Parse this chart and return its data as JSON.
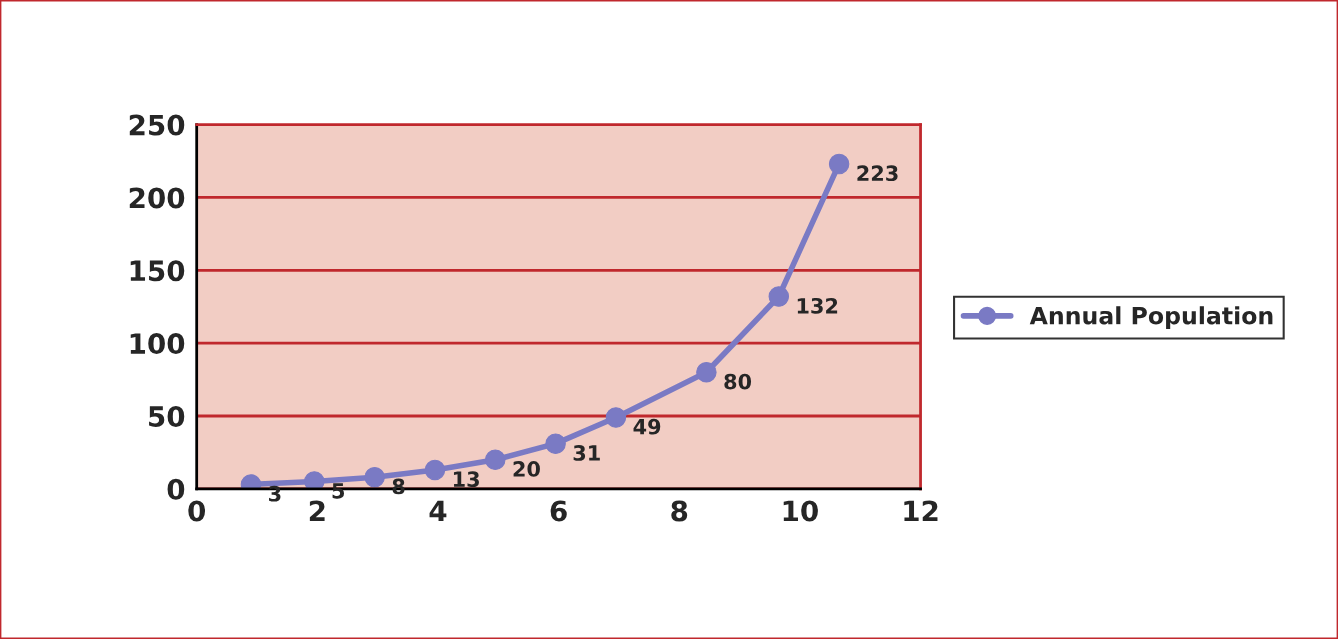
{
  "chart_data": {
    "type": "line",
    "x": [
      0.9,
      1.95,
      2.95,
      3.95,
      4.95,
      5.95,
      6.95,
      8.45,
      9.65,
      10.65
    ],
    "series": [
      {
        "name": "Annual Population",
        "color": "#7a7ac4",
        "values": [
          3,
          5,
          8,
          13,
          20,
          31,
          49,
          80,
          132,
          223
        ]
      }
    ],
    "xlim": [
      0,
      12
    ],
    "xticks": [
      0,
      2,
      4,
      6,
      8,
      10,
      12
    ],
    "ylim": [
      0,
      250
    ],
    "yticks": [
      0,
      50,
      100,
      150,
      200,
      250
    ],
    "grid": "y",
    "legend": "right",
    "marker": "circle",
    "line_style": "solid",
    "data_labels": true
  }
}
